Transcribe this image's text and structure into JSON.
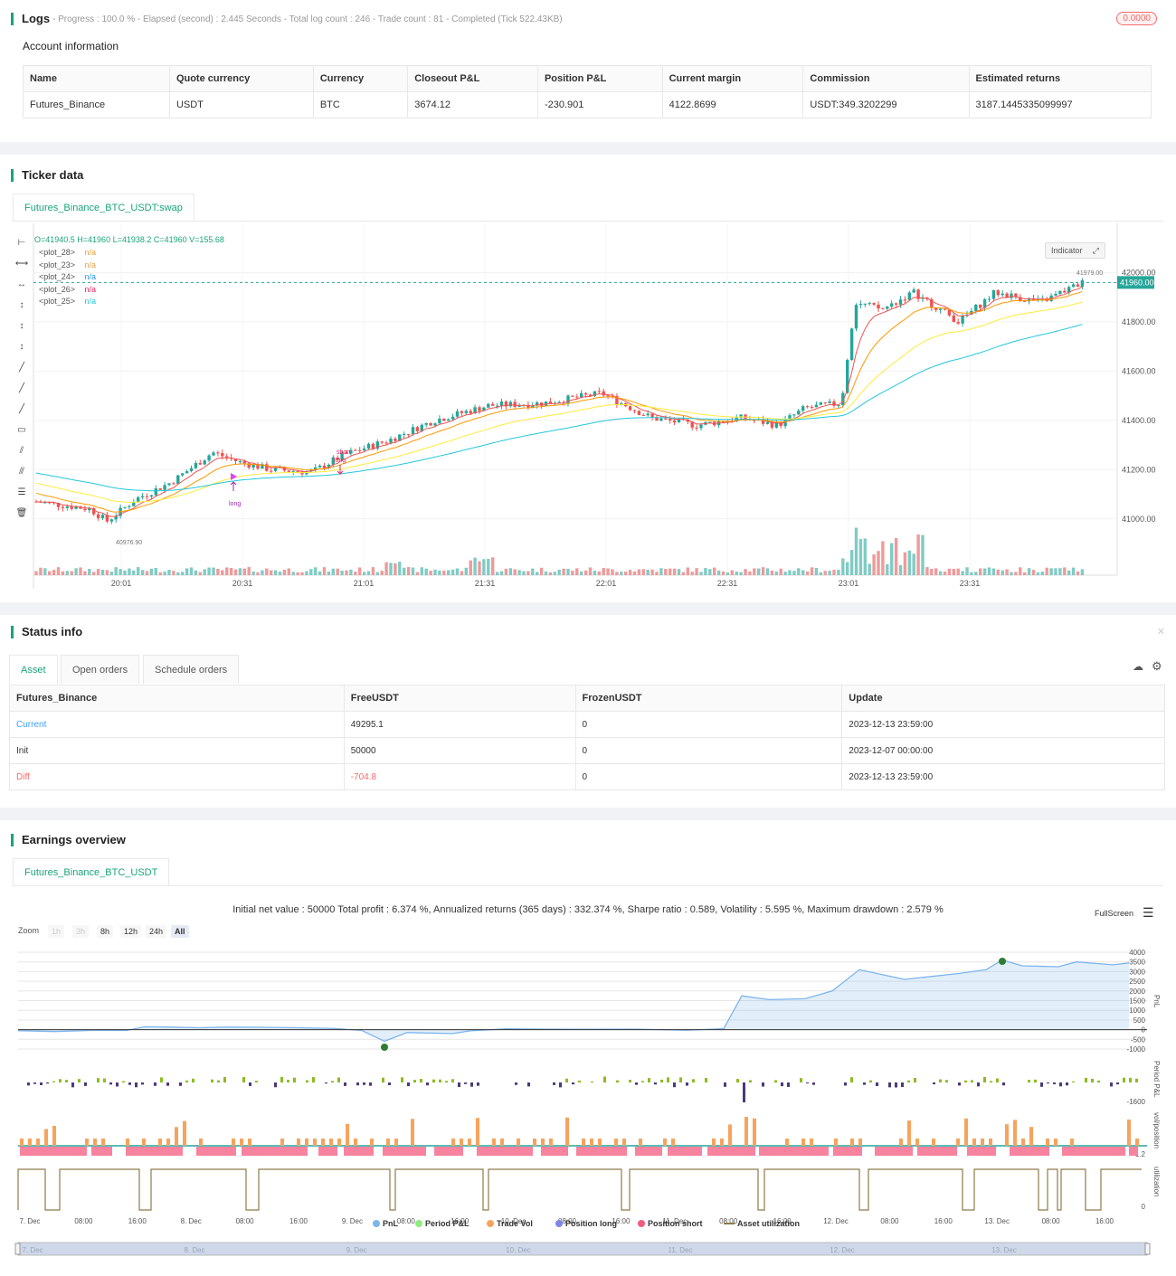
{
  "logs": {
    "title": "Logs",
    "progress": "- Progress : 100.0 % - Elapsed (second) : 2.445 Seconds - Total log count : 246 - Trade count : 81 - Completed (Tick 522.43KB)",
    "badge": "0.0000",
    "account_title": "Account information",
    "headers": [
      "Name",
      "Quote currency",
      "Currency",
      "Closeout P&L",
      "Position P&L",
      "Current margin",
      "Commission",
      "Estimated returns"
    ],
    "row": [
      "Futures_Binance",
      "USDT",
      "BTC",
      "3674.12",
      "-230.901",
      "4122.8699",
      "USDT:349.3202299",
      "3187.1445335099997"
    ]
  },
  "ticker": {
    "title": "Ticker data",
    "tab": "Futures_Binance_BTC_USDT:swap",
    "ohlc": "O=41940.5 H=41960 L=41938.2 C=41960 V=155.68",
    "plots": [
      {
        "name": "<plot_28>",
        "value": "n/a",
        "color": "#e6a23c"
      },
      {
        "name": "<plot_23>",
        "value": "n/a",
        "color": "#e6a23c"
      },
      {
        "name": "<plot_24>",
        "value": "n/a",
        "color": "#2196f3"
      },
      {
        "name": "<plot_26>",
        "value": "n/a",
        "color": "#e91e63"
      },
      {
        "name": "<plot_25>",
        "value": "n/a",
        "color": "#26c6da"
      }
    ],
    "indicator_label": "Indicator",
    "price_ticks": [
      "42000.00",
      "41800.00",
      "41600.00",
      "41400.00",
      "41200.00",
      "41000.00"
    ],
    "current_price": "41960.00",
    "high_label": "41979.00",
    "low_label": "40976.90",
    "time_ticks": [
      "20:01",
      "20:31",
      "21:01",
      "21:31",
      "22:01",
      "22:31",
      "23:01",
      "23:31"
    ],
    "annotations": [
      "short",
      "long",
      "long"
    ]
  },
  "status": {
    "title": "Status info",
    "tabs": [
      "Asset",
      "Open orders",
      "Schedule orders"
    ],
    "headers": [
      "Futures_Binance",
      "FreeUSDT",
      "FrozenUSDT",
      "Update"
    ],
    "rows": [
      {
        "label": "Current",
        "free": "49295.1",
        "frozen": "0",
        "update": "2023-12-13 23:59:00"
      },
      {
        "label": "Init",
        "free": "50000",
        "frozen": "0",
        "update": "2023-12-07 00:00:00"
      },
      {
        "label": "Diff",
        "free": "-704.8",
        "frozen": "0",
        "update": "2023-12-13 23:59:00"
      }
    ]
  },
  "earnings": {
    "title": "Earnings overview",
    "tab": "Futures_Binance_BTC_USDT",
    "summary": "Initial net value : 50000 Total profit : 6.374 %, Annualized returns (365 days) : 332.374 %, Sharpe ratio : 0.589, Volatility : 5.595 %, Maximum drawdown : 2.579 %",
    "fullscreen": "FullScreen",
    "zoom_label": "Zoom",
    "zoom_buttons": [
      "1h",
      "3h",
      "8h",
      "12h",
      "24h",
      "All"
    ],
    "pnl_ticks": [
      "4000",
      "3500",
      "3000",
      "2500",
      "2000",
      "1500",
      "1000",
      "500",
      "0",
      "-500",
      "-1000"
    ],
    "axis_labels": [
      "PnL",
      "Period P&L",
      "vol/position",
      "utilization"
    ],
    "period_tick": "-1600",
    "vol_tick": "-1.2",
    "util_tick": "0",
    "time_ticks": [
      "7. Dec",
      "08:00",
      "16:00",
      "8. Dec",
      "08:00",
      "16:00",
      "9. Dec",
      "08:00",
      "16:00",
      "10. Dec",
      "08:00",
      "16:00",
      "11. Dec",
      "08:00",
      "16:00",
      "12. Dec",
      "08:00",
      "16:00",
      "13. Dec",
      "08:00",
      "16:00"
    ],
    "navigator_ticks": [
      "7. Dec",
      "8. Dec",
      "9. Dec",
      "10. Dec",
      "11. Dec",
      "12. Dec",
      "13. Dec"
    ],
    "legend": [
      {
        "name": "PnL",
        "color": "#7cb5ec"
      },
      {
        "name": "Period P&L",
        "color": "#90ed7d"
      },
      {
        "name": "Trade Vol",
        "color": "#f7a35c"
      },
      {
        "name": "Position long",
        "color": "#8085e9"
      },
      {
        "name": "Position short",
        "color": "#f15c80"
      },
      {
        "name": "Asset utilization",
        "color": "#8d7b4a"
      }
    ]
  }
}
